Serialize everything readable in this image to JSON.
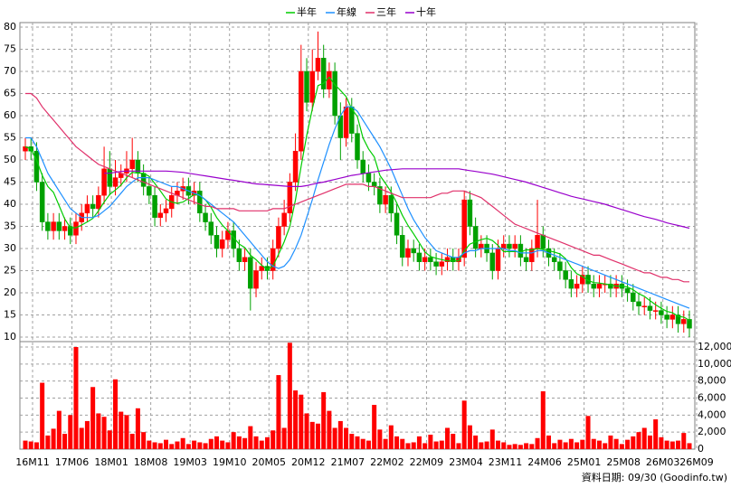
{
  "chart_data": {
    "type": "candlestick",
    "legend": "top",
    "grid": true,
    "up_color": "#ff0000",
    "down_color": "#00a000",
    "volume_color": "#ff0000",
    "footer": "資料日期: 09/30 (Goodinfo.tw)",
    "categories": [
      "16M11",
      null,
      null,
      null,
      null,
      null,
      null,
      "17M06",
      null,
      null,
      null,
      null,
      null,
      null,
      "18M01",
      null,
      null,
      null,
      null,
      null,
      null,
      "18M08",
      null,
      null,
      null,
      null,
      null,
      null,
      "19M03",
      null,
      null,
      null,
      null,
      null,
      null,
      "19M10",
      null,
      null,
      null,
      null,
      null,
      null,
      "20M05",
      null,
      null,
      null,
      null,
      null,
      null,
      "20M12",
      null,
      null,
      null,
      null,
      null,
      null,
      "21M07",
      null,
      null,
      null,
      null,
      null,
      null,
      "22M02",
      null,
      null,
      null,
      null,
      null,
      null,
      "22M09",
      null,
      null,
      null,
      null,
      null,
      null,
      "23M04",
      null,
      null,
      null,
      null,
      null,
      null,
      "23M11",
      null,
      null,
      null,
      null,
      null,
      null,
      "24M06",
      null,
      null,
      null,
      null,
      null,
      null,
      "25M01",
      null,
      null,
      null,
      null,
      null,
      null,
      "25M08",
      null,
      null,
      null,
      null,
      null,
      null,
      "26M03",
      null,
      null,
      null,
      null,
      null,
      "26M09"
    ],
    "open": [
      52,
      53,
      52,
      45,
      36,
      34,
      36,
      34,
      35,
      33,
      36,
      38,
      40,
      39,
      42,
      48,
      44,
      46,
      47,
      48,
      50,
      47,
      44,
      42,
      37,
      38,
      39,
      42,
      43,
      44,
      42,
      43,
      38,
      36,
      33,
      30,
      32,
      34,
      30,
      27,
      28,
      21,
      25,
      26,
      25,
      30,
      35,
      38,
      45,
      52,
      70,
      63,
      70,
      73,
      66,
      70,
      60,
      55,
      62,
      56,
      50,
      47,
      45,
      44,
      40,
      42,
      38,
      33,
      28,
      30,
      29,
      27,
      28,
      27,
      26,
      27,
      28,
      27,
      28,
      41,
      35,
      30,
      31,
      29,
      25,
      30,
      31,
      30,
      31,
      28,
      27,
      30,
      33,
      30,
      28,
      27,
      25,
      23,
      21,
      22,
      24,
      22,
      21,
      22,
      22,
      21,
      22,
      21,
      20,
      18,
      17,
      17,
      16,
      16,
      15,
      14,
      15,
      13,
      14
    ],
    "high": [
      55,
      55,
      54,
      47,
      38,
      38,
      38,
      37,
      37,
      38,
      40,
      42,
      42,
      44,
      53,
      52,
      50,
      49,
      52,
      55,
      52,
      49,
      46,
      44,
      40,
      41,
      44,
      45,
      46,
      46,
      45,
      45,
      40,
      38,
      35,
      34,
      36,
      36,
      32,
      30,
      30,
      27,
      28,
      28,
      32,
      37,
      41,
      47,
      56,
      76,
      73,
      75,
      79,
      76,
      72,
      72,
      63,
      64,
      64,
      58,
      52,
      49,
      47,
      46,
      44,
      44,
      40,
      35,
      32,
      32,
      31,
      30,
      30,
      29,
      29,
      30,
      30,
      30,
      43,
      43,
      37,
      33,
      33,
      31,
      32,
      33,
      33,
      33,
      33,
      30,
      32,
      41,
      35,
      32,
      30,
      29,
      27,
      25,
      24,
      26,
      26,
      24,
      24,
      24,
      24,
      24,
      24,
      23,
      22,
      20,
      19,
      19,
      18,
      18,
      17,
      17,
      17,
      16,
      16
    ],
    "low": [
      50,
      50,
      43,
      34,
      32,
      32,
      32,
      32,
      31,
      31,
      34,
      36,
      37,
      37,
      40,
      42,
      42,
      44,
      45,
      46,
      45,
      42,
      40,
      35,
      35,
      36,
      37,
      40,
      41,
      40,
      40,
      36,
      34,
      31,
      28,
      28,
      30,
      28,
      25,
      25,
      16,
      19,
      23,
      23,
      23,
      28,
      33,
      36,
      43,
      50,
      61,
      61,
      68,
      64,
      64,
      58,
      50,
      53,
      54,
      48,
      45,
      43,
      42,
      38,
      38,
      36,
      31,
      26,
      26,
      27,
      25,
      25,
      25,
      24,
      24,
      25,
      25,
      25,
      26,
      33,
      28,
      28,
      27,
      23,
      23,
      28,
      28,
      28,
      26,
      25,
      25,
      28,
      28,
      26,
      25,
      23,
      21,
      19,
      19,
      20,
      20,
      19,
      19,
      20,
      19,
      19,
      19,
      18,
      16,
      15,
      15,
      14,
      14,
      13,
      12,
      12,
      11,
      11,
      10
    ],
    "close": [
      53,
      52,
      45,
      36,
      34,
      36,
      34,
      35,
      33,
      36,
      38,
      40,
      39,
      42,
      48,
      44,
      46,
      47,
      48,
      50,
      47,
      44,
      42,
      37,
      38,
      39,
      42,
      43,
      44,
      42,
      43,
      38,
      36,
      33,
      30,
      32,
      34,
      30,
      27,
      28,
      21,
      25,
      26,
      25,
      30,
      35,
      38,
      45,
      52,
      70,
      63,
      70,
      73,
      66,
      70,
      60,
      55,
      62,
      56,
      50,
      47,
      45,
      44,
      40,
      42,
      38,
      33,
      28,
      30,
      29,
      27,
      28,
      27,
      26,
      27,
      28,
      27,
      28,
      41,
      35,
      30,
      31,
      29,
      25,
      30,
      31,
      30,
      31,
      28,
      27,
      30,
      33,
      30,
      28,
      27,
      25,
      23,
      21,
      22,
      24,
      22,
      21,
      22,
      22,
      21,
      22,
      21,
      20,
      18,
      17,
      17,
      16,
      16,
      15,
      14,
      15,
      13,
      14,
      12
    ],
    "volume": [
      1000,
      900,
      800,
      7800,
      1600,
      2400,
      4500,
      1800,
      4000,
      12000,
      2500,
      3300,
      7300,
      4200,
      3800,
      2200,
      8200,
      4400,
      4000,
      1800,
      4800,
      2000,
      1000,
      800,
      700,
      1100,
      600,
      900,
      1300,
      600,
      1000,
      800,
      700,
      1200,
      1500,
      1000,
      800,
      2000,
      1500,
      1300,
      2700,
      1500,
      1000,
      1400,
      2200,
      8700,
      2500,
      12500,
      6900,
      6400,
      4200,
      3200,
      3000,
      6700,
      4500,
      2500,
      3300,
      2500,
      1800,
      1500,
      1200,
      1000,
      5200,
      2300,
      1200,
      2800,
      1500,
      1200,
      700,
      800,
      1500,
      700,
      1700,
      900,
      1000,
      2500,
      1800,
      700,
      5700,
      2800,
      1600,
      800,
      900,
      2300,
      1000,
      800,
      500,
      600,
      500,
      700,
      600,
      1300,
      6800,
      1600,
      700,
      1100,
      800,
      1200,
      800,
      1100,
      3900,
      1200,
      1000,
      700,
      1600,
      1200,
      600,
      1100,
      1500,
      2000,
      2500,
      1600,
      3500,
      1400,
      1000,
      900,
      1000,
      1900,
      700
    ],
    "series": [
      {
        "name": "半年",
        "color": "#00cc00",
        "values": [
          53,
          52.5,
          50,
          46.5,
          44,
          42.7,
          39.7,
          36.7,
          34.7,
          34.7,
          35.3,
          36,
          36.8,
          38.5,
          40.5,
          42.2,
          43.2,
          44.3,
          46,
          47.2,
          47,
          47,
          46.3,
          44.7,
          43,
          41.2,
          40.5,
          40.2,
          40.5,
          41.3,
          42.2,
          42,
          41,
          39.3,
          37,
          35.3,
          34,
          32.5,
          31,
          30.2,
          28.5,
          27.5,
          26.2,
          25.3,
          26,
          28.7,
          31.5,
          35,
          41,
          48.5,
          55.5,
          61.5,
          66.8,
          67.3,
          68.7,
          67,
          65.7,
          64.3,
          61.5,
          59.8,
          55,
          52.5,
          50.7,
          46.5,
          44.7,
          42.8,
          40.3,
          37.5,
          35.2,
          33.3,
          31.3,
          29.2,
          28.2,
          27.8,
          27.5,
          27.2,
          27.2,
          27.2,
          29.5,
          31,
          31.5,
          32,
          32.3,
          31.8,
          30.7,
          29.3,
          29.3,
          29.3,
          29.2,
          29.7,
          29.7,
          30,
          29.8,
          29.5,
          29.2,
          28.8,
          27.7,
          25.7,
          24.3,
          23.7,
          22.8,
          22.3,
          22.2,
          22,
          21.8,
          21.5,
          21.5,
          21.3,
          20.7,
          19.8,
          19.2,
          18.2,
          17.3,
          16.5,
          15.8,
          15.5,
          14.7,
          14.5,
          13.8
        ]
      },
      {
        "name": "年線",
        "color": "#1e90ff",
        "values": [
          55,
          55,
          53,
          50,
          47,
          45,
          43,
          41,
          39,
          38,
          37,
          37,
          37,
          37.5,
          38.5,
          39.5,
          41,
          42.5,
          44,
          45,
          46,
          46,
          46,
          45.5,
          45,
          44.5,
          44,
          44,
          43.5,
          43,
          42.5,
          42,
          41,
          40,
          39,
          38,
          37,
          36,
          34.5,
          33,
          31.5,
          30,
          28.5,
          27,
          26,
          25.5,
          26,
          27.5,
          30,
          33,
          37,
          41,
          45.5,
          49.5,
          53.5,
          57,
          60,
          62,
          62,
          61,
          59,
          57,
          55,
          53,
          50.5,
          48,
          45,
          42,
          39,
          36.5,
          34.5,
          32.5,
          31,
          29.5,
          29,
          28.5,
          28,
          28,
          29,
          29.5,
          29.5,
          30,
          30,
          30,
          30,
          30,
          29.5,
          29.5,
          29,
          29,
          29,
          29.5,
          29.5,
          29,
          28.5,
          28,
          27.5,
          27,
          26.5,
          26,
          25.5,
          25,
          24.5,
          24,
          23.5,
          23,
          22.5,
          22,
          21.5,
          21,
          20.5,
          20,
          19.5,
          19,
          18.5,
          18,
          17.5,
          17,
          16.5
        ]
      },
      {
        "name": "三年",
        "color": "#e0306a",
        "values": [
          65,
          65,
          64,
          62,
          60.5,
          59,
          57.5,
          56,
          54.5,
          53,
          52,
          51,
          50,
          49,
          48.5,
          48,
          47.5,
          47,
          46.5,
          46,
          45.5,
          45,
          44.5,
          44,
          43.5,
          43,
          42.5,
          42,
          41.5,
          41,
          40.5,
          40,
          39.5,
          39.5,
          39,
          39,
          39,
          39,
          38.5,
          38.5,
          38.5,
          38.5,
          38.5,
          38.5,
          39,
          39,
          39,
          39.5,
          40,
          40.5,
          41,
          41.5,
          42,
          42.5,
          43,
          43.5,
          44,
          44.5,
          44.5,
          44.5,
          44.5,
          44,
          44,
          43.5,
          43,
          42.5,
          42,
          41.5,
          41.5,
          41.5,
          41.5,
          41.5,
          41.5,
          42,
          42.5,
          42.5,
          43,
          43,
          43,
          42.5,
          42,
          41.5,
          40.5,
          39.5,
          38.5,
          37.5,
          36.5,
          35.5,
          35,
          34.5,
          34,
          33.5,
          33,
          32.5,
          32,
          31.5,
          31,
          30.5,
          30,
          29.5,
          29,
          28.5,
          28.5,
          28,
          27.5,
          27,
          26.5,
          26,
          25.5,
          25,
          24.5,
          24.5,
          24,
          23.5,
          23.5,
          23,
          23,
          22.5,
          22.5
        ]
      },
      {
        "name": "十年",
        "color": "#9900cc",
        "values": [
          null,
          null,
          null,
          null,
          null,
          null,
          null,
          null,
          null,
          null,
          null,
          null,
          null,
          null,
          47,
          47,
          47.2,
          47.4,
          47.5,
          47.5,
          47.5,
          47.5,
          47.5,
          47.5,
          47.5,
          47.5,
          47.4,
          47.3,
          47.2,
          47,
          46.8,
          46.6,
          46.4,
          46.2,
          46,
          45.8,
          45.6,
          45.4,
          45.2,
          45,
          44.8,
          44.6,
          44.5,
          44.4,
          44.3,
          44.2,
          44.1,
          44,
          44,
          44,
          44.2,
          44.5,
          44.8,
          45,
          45.3,
          45.6,
          45.9,
          46.2,
          46.5,
          46.7,
          46.9,
          47.1,
          47.3,
          47.5,
          47.7,
          47.8,
          47.9,
          48,
          48,
          48,
          48,
          48,
          48,
          48,
          48,
          48,
          48,
          48,
          47.8,
          47.6,
          47.4,
          47.2,
          47,
          46.8,
          46.5,
          46.2,
          45.9,
          45.6,
          45.3,
          45,
          44.6,
          44.2,
          43.8,
          43.4,
          43,
          42.6,
          42.2,
          41.8,
          41.5,
          41.2,
          40.9,
          40.6,
          40.3,
          40,
          39.6,
          39.2,
          38.8,
          38.4,
          38,
          37.6,
          37.2,
          36.9,
          36.6,
          36.2,
          35.8,
          35.5,
          35.2,
          34.9,
          34.6
        ]
      }
    ],
    "ylim": [
      10,
      80
    ],
    "yticks": [
      10,
      15,
      20,
      25,
      30,
      35,
      40,
      45,
      50,
      55,
      60,
      65,
      70,
      75,
      80
    ],
    "y2lim": [
      0,
      12000
    ],
    "y2ticks": [
      0,
      {
        "value": 2000,
        "label": "2,000"
      },
      {
        "value": 4000,
        "label": "4,000"
      },
      {
        "value": 6000,
        "label": "6,000"
      },
      {
        "value": 8000,
        "label": "8,000"
      },
      {
        "value": 10000,
        "label": "10,000"
      },
      {
        "value": 12000,
        "label": "12,000"
      }
    ]
  }
}
